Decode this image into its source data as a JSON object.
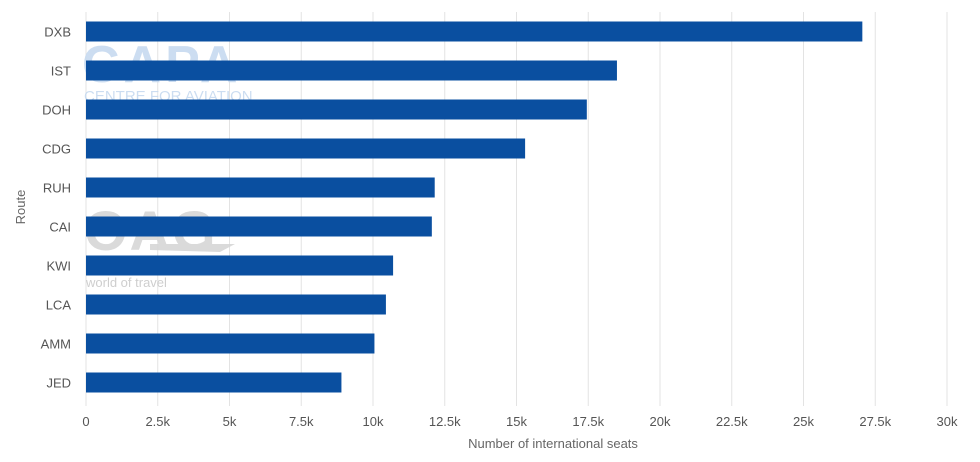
{
  "chart_data": {
    "type": "bar",
    "orientation": "horizontal",
    "title": "",
    "xlabel": "Number of international seats",
    "ylabel": "Route",
    "categories": [
      "DXB",
      "IST",
      "DOH",
      "CDG",
      "RUH",
      "CAI",
      "KWI",
      "LCA",
      "AMM",
      "JED"
    ],
    "values": [
      27050,
      18500,
      17450,
      15300,
      12150,
      12050,
      10700,
      10450,
      10050,
      8900
    ],
    "xlim": [
      0,
      30000
    ],
    "xticks": [
      0,
      2500,
      5000,
      7500,
      10000,
      12500,
      15000,
      17500,
      20000,
      22500,
      25000,
      27500,
      30000
    ],
    "xtick_labels": [
      "0",
      "2.5k",
      "5k",
      "7.5k",
      "10k",
      "12.5k",
      "15k",
      "17.5k",
      "20k",
      "22.5k",
      "25k",
      "27.5k",
      "30k"
    ],
    "grid": "vertical",
    "legend": "none",
    "bar_color": "#0a4fa0",
    "grid_color": "#e3e3e3"
  },
  "watermarks": {
    "capa_logo": "CAPA",
    "capa_sub": "CENTRE FOR AVIATION",
    "oag_logo": "OAG",
    "oag_sub": "world of travel"
  }
}
